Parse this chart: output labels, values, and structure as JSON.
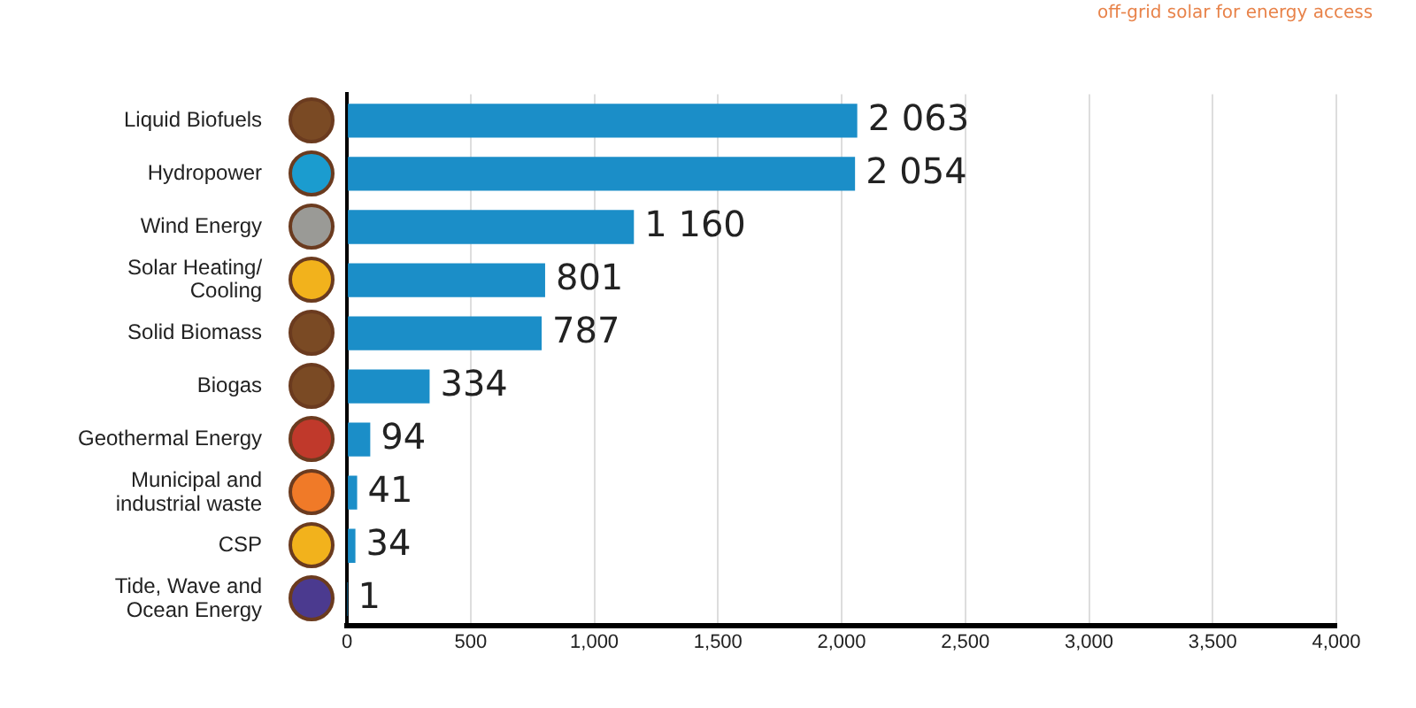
{
  "chart_data": {
    "type": "bar",
    "orientation": "horizontal",
    "categories": [
      "Liquid Biofuels",
      "Hydropower",
      "Wind Energy",
      "Solar Heating/ Cooling",
      "Solid Biomass",
      "Biogas",
      "Geothermal Energy",
      "Municipal and industrial waste",
      "CSP",
      "Tide, Wave and Ocean Energy"
    ],
    "values": [
      2063,
      2054,
      1160,
      801,
      787,
      334,
      94,
      41,
      34,
      1
    ],
    "value_labels": [
      "2 063",
      "2 054",
      "1 160",
      "801",
      "787",
      "334",
      "94",
      "41",
      "34",
      "1"
    ],
    "color": "#1b8ec8",
    "xlim": [
      0,
      4000
    ],
    "xticks": [
      0,
      500,
      {
        "value": 1000,
        "label": "1,000"
      },
      {
        "value": 1500,
        "label": "1,500"
      },
      {
        "value": 2000,
        "label": "2,000"
      },
      {
        "value": 2500,
        "label": "2,500"
      },
      {
        "value": 3000,
        "label": "3,000"
      },
      {
        "value": 3500,
        "label": "3,500"
      },
      {
        "value": 4000,
        "label": "4,000"
      }
    ],
    "grid": "x",
    "legend": false,
    "annotations": [
      "off-grid solar for energy access"
    ]
  }
}
